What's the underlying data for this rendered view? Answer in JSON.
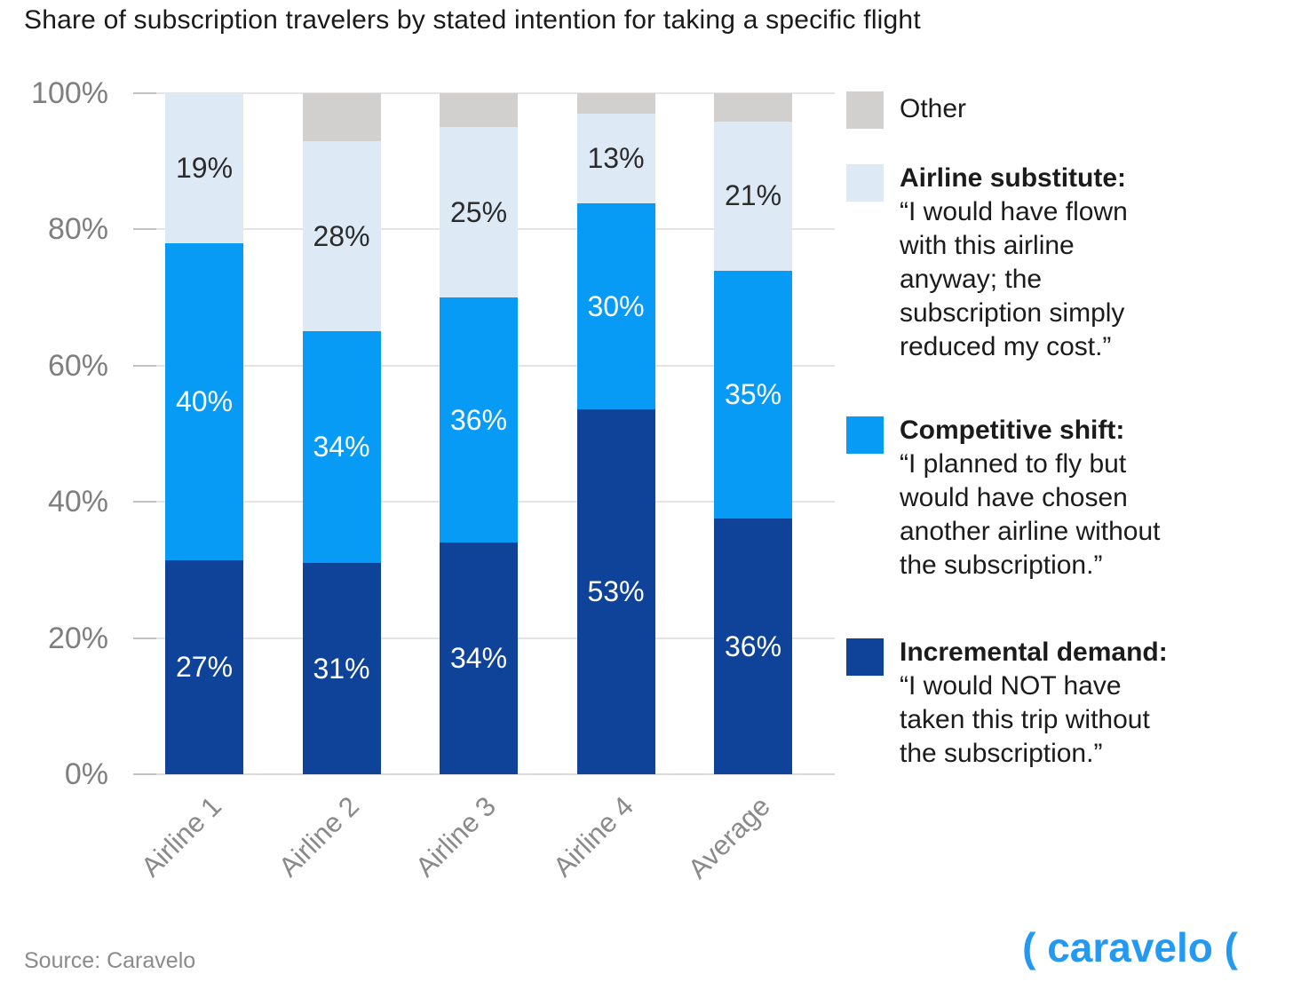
{
  "title": "Share of subscription travelers by stated intention for taking a specific flight",
  "source_note": "Source: Caravelo",
  "logo_text": "( caravelo (",
  "chart_data": {
    "type": "bar",
    "stacked": true,
    "title": "Share of subscription travelers by stated intention for taking a specific flight",
    "categories": [
      "Airline 1",
      "Airline 2",
      "Airline 3",
      "Airline 4",
      "Average"
    ],
    "series": [
      {
        "name": "Incremental demand",
        "color": "#0e4399",
        "label_color": "#ffffff",
        "show_labels": true,
        "values": [
          27,
          31,
          34,
          53,
          36
        ]
      },
      {
        "name": "Competitive shift",
        "color": "#089bf6",
        "label_color": "#ffffff",
        "show_labels": true,
        "values": [
          40,
          34,
          36,
          30,
          35
        ]
      },
      {
        "name": "Airline substitute",
        "color": "#dde9f4",
        "label_color": "#2b2b2b",
        "show_labels": true,
        "values": [
          19,
          28,
          25,
          13,
          21
        ]
      },
      {
        "name": "Other",
        "color": "#d2d0cf",
        "label_color": "#2b2b2b",
        "show_labels": false,
        "values": [
          0,
          7,
          5,
          3,
          4
        ],
        "values_estimated_from_bar_heights": true
      }
    ],
    "value_suffix": "%",
    "y_ticks": [
      "0%",
      "20%",
      "40%",
      "60%",
      "80%",
      "100%"
    ],
    "ylim": [
      0,
      100
    ],
    "grid": true,
    "legend_position": "right"
  },
  "legend": {
    "items": [
      {
        "swatch": "#d2d0cf",
        "label": "Other"
      },
      {
        "swatch": "#dde9f4",
        "title": "Airline substitute:",
        "quote": "“I would have flown\nwith this airline\nanyway; the\nsubscription simply\nreduced my cost.”"
      },
      {
        "swatch": "#089bf6",
        "title": "Competitive shift:",
        "quote": "“I planned to fly but\nwould have chosen\nanother airline without\nthe subscription.”"
      },
      {
        "swatch": "#0e4399",
        "title": "Incremental demand:",
        "quote": "“I would NOT have\ntaken this trip without\nthe subscription.”"
      }
    ]
  }
}
